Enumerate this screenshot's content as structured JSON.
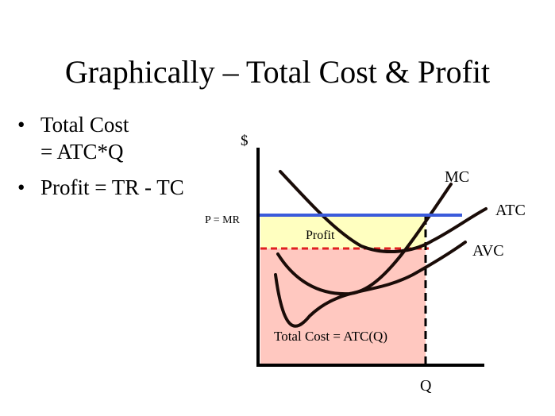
{
  "slide": {
    "title": "Graphically – Total Cost & Profit",
    "bullets": [
      {
        "lines": [
          "Total Cost",
          "= ATC*Q"
        ]
      },
      {
        "lines": [
          "Profit = TR - TC"
        ]
      }
    ],
    "bullet_glyph": "•"
  },
  "graph": {
    "y_axis_label": "$",
    "x_axis_label": "Q",
    "price_label": "P = MR",
    "curves": {
      "mc": "MC",
      "atc": "ATC",
      "avc": "AVC"
    },
    "regions": {
      "profit": "Profit",
      "total_cost": "Total Cost = ATC(Q)"
    },
    "colors": {
      "price_line": "#3b5bdb",
      "atc_level_line": "#e02020",
      "profit_fill": "#ffffc0",
      "total_cost_fill": "#ffc8c0",
      "curve": "#1a0c08",
      "axis": "#000000"
    }
  }
}
